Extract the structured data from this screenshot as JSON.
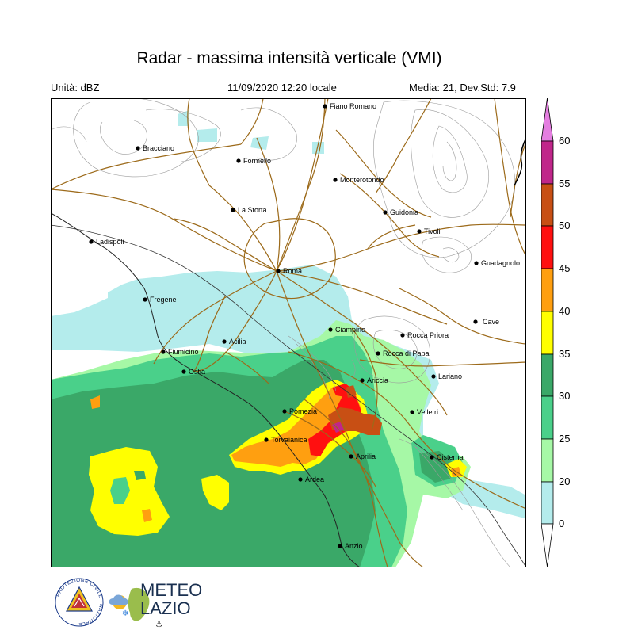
{
  "header": {
    "title": "Radar - massima intensità verticale (VMI)",
    "unit": "Unità: dBZ",
    "datetime": "11/09/2020 12:20 locale",
    "stats": "Media: 21, Dev.Std: 7.9"
  },
  "legend": {
    "ticks": [
      "60",
      "55",
      "50",
      "45",
      "40",
      "35",
      "30",
      "25",
      "20",
      "0"
    ],
    "colors": {
      "above_60": "#e47ee0",
      "55_60": "#c0268a",
      "50_55": "#c84f14",
      "45_50": "#ff1010",
      "40_45": "#ff9f10",
      "35_40": "#ffff00",
      "30_35": "#3aa868",
      "25_30": "#4ad08a",
      "20_25": "#a6f8a6",
      "0_20": "#b4ecec"
    }
  },
  "map": {
    "places": [
      "Fiano Romano",
      "Bracciano",
      "Formello",
      "Monterotondo",
      "La Storta",
      "Guidonia",
      "Tivoli",
      "Ladispoli",
      "Guadagnolo",
      "Roma",
      "Fregene",
      "Cave",
      "Ciampino",
      "Rocca Priora",
      "Fiumicino",
      "Acilia",
      "Rocca di Papa",
      "Ostia",
      "Lariano",
      "Ariccia",
      "Pomezia",
      "Velletri",
      "Torvaianica",
      "Aprilia",
      "Cisterna",
      "Ardea",
      "Anzio"
    ]
  },
  "logos": {
    "protezione_civile": "PROTEZIONE CIVILE · NAZIONALE ·",
    "meteo_lazio_top": "METEO",
    "meteo_lazio_bottom": "LAZIO"
  }
}
